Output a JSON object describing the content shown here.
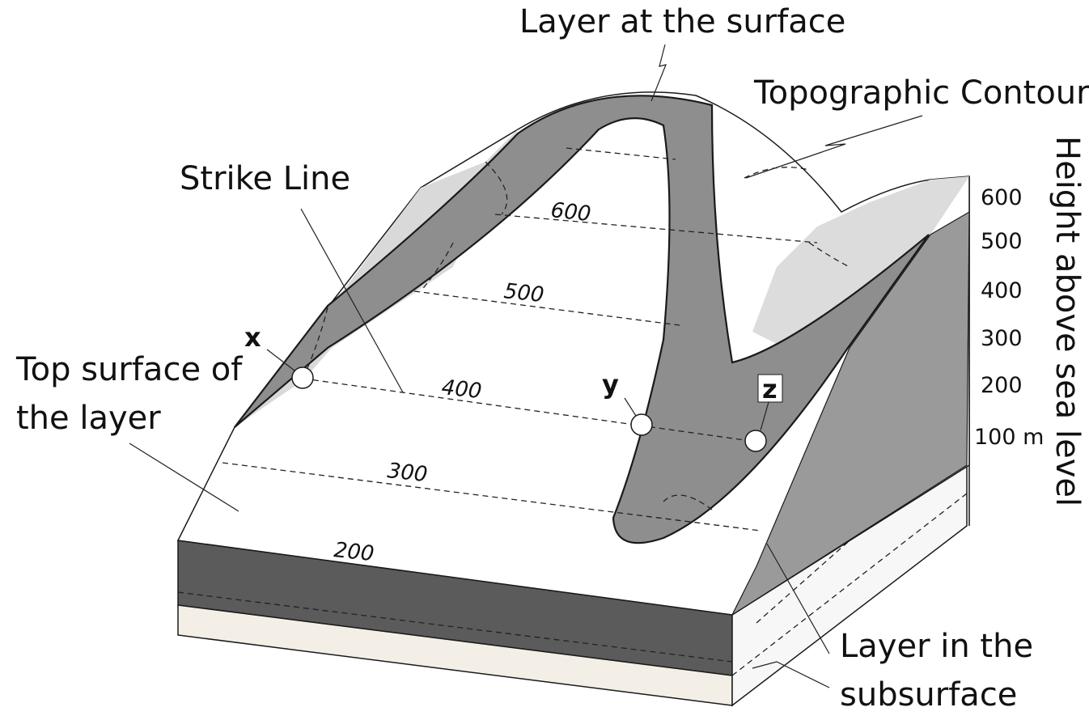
{
  "labels": {
    "layer_at_surface": "Layer at the surface",
    "topographic_contour": "Topographic Contour",
    "strike_line": "Strike Line",
    "top_surface_line1": "Top surface of",
    "top_surface_line2": "the layer",
    "layer_subsurface_line1": "Layer in the",
    "layer_subsurface_line2": "subsurface",
    "height_axis": "Height above sea level"
  },
  "contour_labels": [
    "600",
    "500",
    "400",
    "300",
    "200"
  ],
  "height_ticks": [
    "600",
    "500",
    "400",
    "300",
    "200",
    "100 m"
  ],
  "points": {
    "x": "x",
    "y": "y",
    "z": "z"
  },
  "colors": {
    "layer": "#8a8a8a",
    "layer_dark": "#5e5e5e",
    "slope_light": "#d8d8d8",
    "base": "#f3efe6",
    "outline": "#1a1a1a"
  }
}
